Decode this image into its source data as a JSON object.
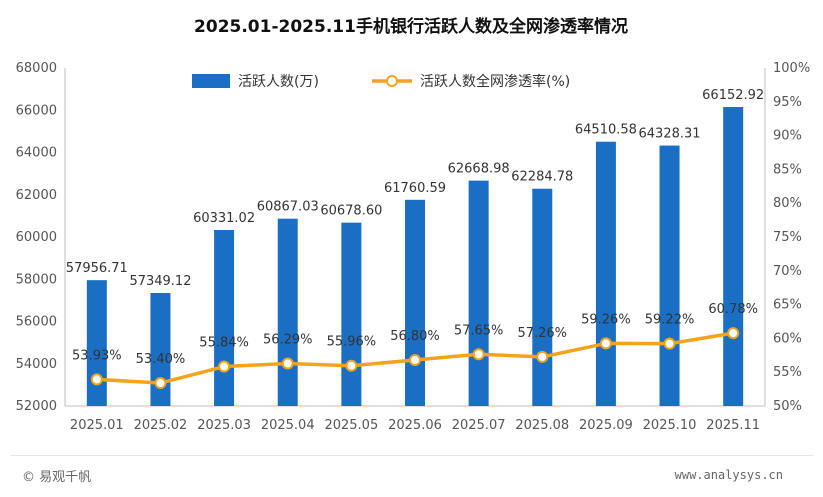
{
  "chart_data": {
    "type": "bar",
    "title": "2025.01-2025.11手机银行活跃人数及全网渗透率情况",
    "categories": [
      "2025.01",
      "2025.02",
      "2025.03",
      "2025.04",
      "2025.05",
      "2025.06",
      "2025.07",
      "2025.08",
      "2025.09",
      "2025.10",
      "2025.11"
    ],
    "series": [
      {
        "name": "活跃人数(万)",
        "type": "bar",
        "axis": "left",
        "color": "#1a6fc4",
        "values": [
          57956.71,
          57349.12,
          60331.02,
          60867.03,
          60678.6,
          61760.59,
          62668.98,
          62284.78,
          64510.58,
          64328.31,
          66152.92
        ],
        "labels": [
          "57956.71",
          "57349.12",
          "60331.02",
          "60867.03",
          "60678.60",
          "61760.59",
          "62668.98",
          "62284.78",
          "64510.58",
          "64328.31",
          "66152.92"
        ]
      },
      {
        "name": "活跃人数全网渗透率(%)",
        "type": "line",
        "axis": "right",
        "color": "#f5a31a",
        "values": [
          53.93,
          53.4,
          55.84,
          56.29,
          55.96,
          56.8,
          57.65,
          57.26,
          59.26,
          59.22,
          60.78
        ],
        "labels": [
          "53.93%",
          "53.40%",
          "55.84%",
          "56.29%",
          "55.96%",
          "56.80%",
          "57.65%",
          "57.26%",
          "59.26%",
          "59.22%",
          "60.78%"
        ]
      }
    ],
    "left_axis": {
      "ylim": [
        52000,
        68000
      ],
      "ticks": [
        "52000",
        "54000",
        "56000",
        "58000",
        "60000",
        "62000",
        "64000",
        "66000",
        "68000"
      ]
    },
    "right_axis": {
      "ylim": [
        50,
        100
      ],
      "ticks": [
        "50%",
        "55%",
        "60%",
        "65%",
        "70%",
        "75%",
        "80%",
        "85%",
        "90%",
        "95%",
        "100%"
      ]
    },
    "grid": false,
    "legend_position": "top"
  },
  "footer": {
    "source": "© 易观千帆",
    "website": "www.analysys.cn"
  }
}
